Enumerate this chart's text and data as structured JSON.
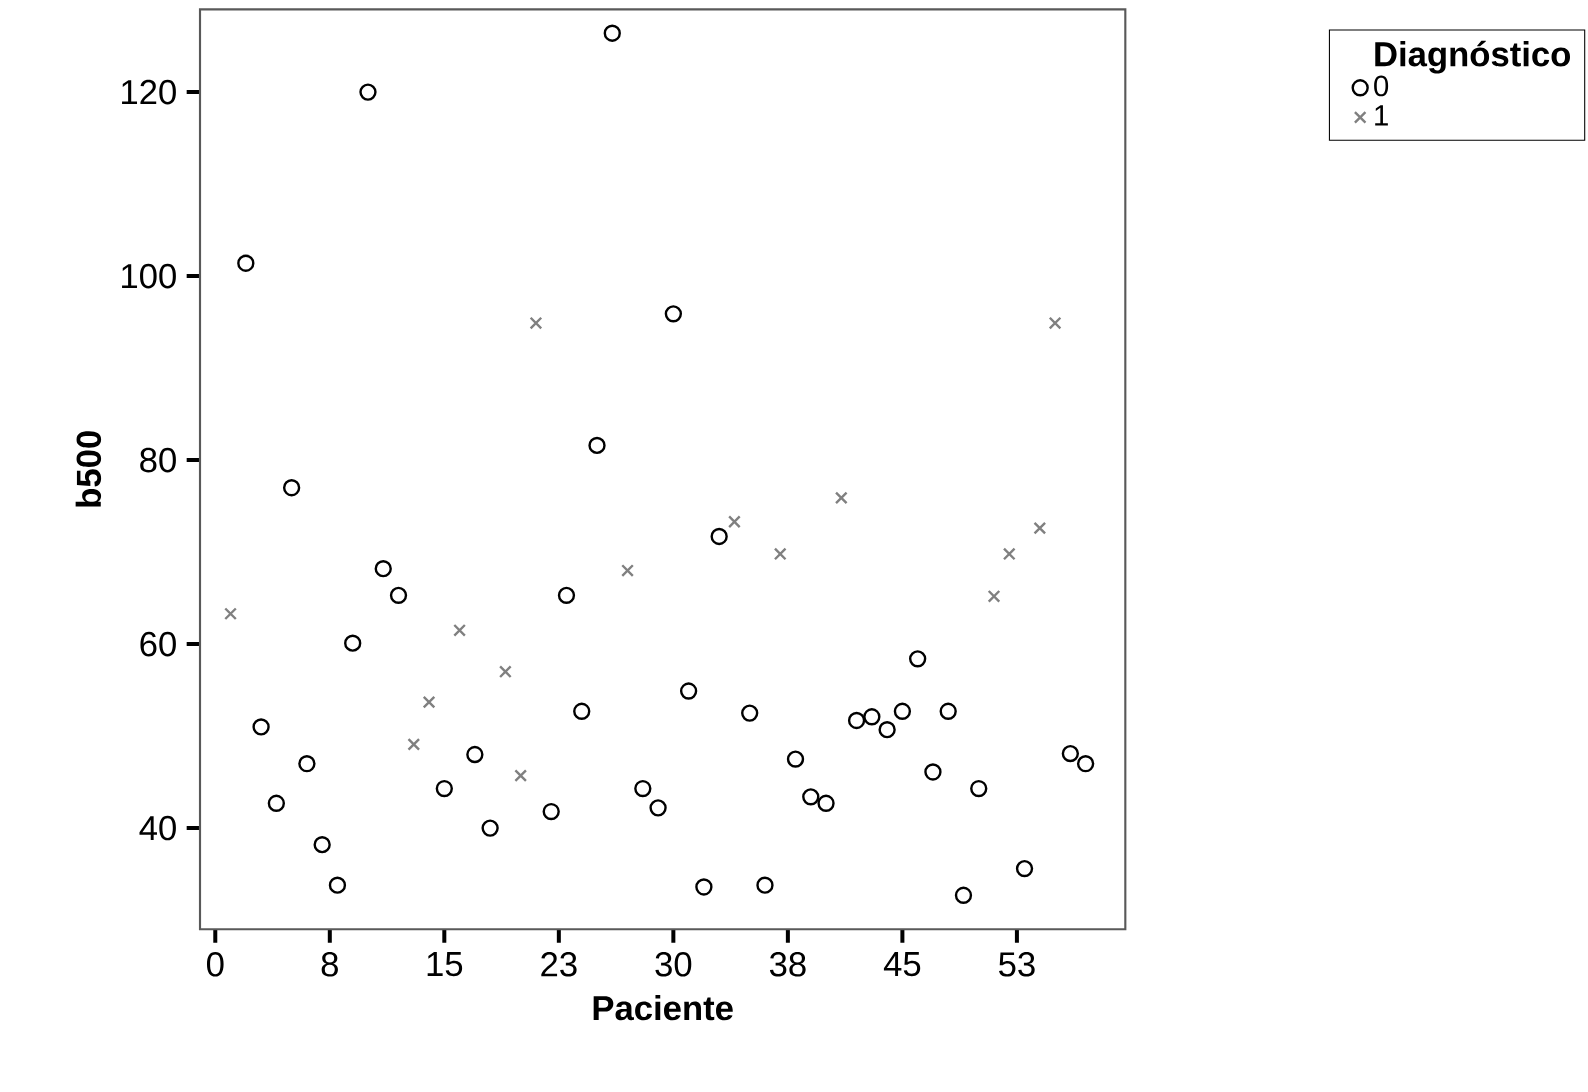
{
  "chart_data": {
    "type": "scatter",
    "xlabel": "Paciente",
    "ylabel": "b500",
    "legend_title": "Diagnóstico",
    "legend": "top right",
    "xlim": [
      -1,
      59.6
    ],
    "ylim": [
      29,
      129
    ],
    "xticks": [
      0,
      {
        "value": 7.5,
        "label": "8"
      },
      15,
      {
        "value": 22.5,
        "label": "23"
      },
      30,
      {
        "value": 37.5,
        "label": "38"
      },
      45,
      {
        "value": 52.5,
        "label": "53"
      }
    ],
    "yticks": [
      40,
      60,
      80,
      100,
      120
    ],
    "series": [
      {
        "name": "0",
        "color": "#000000",
        "marker": "circle",
        "x": [
          2,
          3,
          4,
          5,
          6,
          7,
          8,
          9,
          10,
          11,
          12,
          15,
          17,
          18,
          22,
          23,
          24,
          25,
          26,
          28,
          29,
          30,
          31,
          32,
          33,
          35,
          36,
          38,
          39,
          40,
          42,
          43,
          44,
          45,
          46,
          47,
          48,
          49,
          50,
          53,
          56,
          57
        ],
        "values": [
          101.4,
          51.0,
          42.7,
          77.0,
          47.0,
          38.2,
          33.8,
          60.1,
          120.0,
          68.2,
          65.3,
          44.3,
          48.0,
          40.0,
          41.8,
          65.3,
          52.7,
          81.6,
          126.4,
          44.3,
          42.2,
          95.9,
          54.9,
          33.6,
          71.7,
          52.5,
          33.8,
          47.5,
          43.4,
          42.7,
          51.7,
          52.1,
          50.7,
          52.7,
          58.4,
          46.1,
          52.7,
          32.7,
          44.3,
          35.6,
          48.1,
          47.0
        ]
      },
      {
        "name": "1",
        "color": "#808080",
        "marker": "cross",
        "x": [
          1,
          13,
          14,
          16,
          19,
          20,
          21,
          27,
          34,
          37,
          41,
          51,
          52,
          54,
          55
        ],
        "values": [
          63.3,
          49.1,
          53.7,
          61.5,
          57.0,
          45.7,
          94.9,
          68.0,
          73.3,
          69.8,
          75.9,
          65.2,
          69.8,
          72.6,
          94.9
        ]
      }
    ]
  }
}
